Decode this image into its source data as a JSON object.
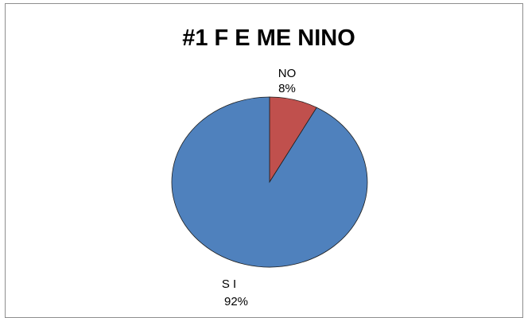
{
  "chart_data": {
    "type": "pie",
    "title": "#1 F E ME NINO",
    "categories": [
      "NO",
      "S I"
    ],
    "values": [
      8,
      92
    ],
    "percent_labels": [
      "8%",
      "92%"
    ],
    "colors": [
      "#c0504d",
      "#4f81bd"
    ],
    "legend": "none"
  }
}
